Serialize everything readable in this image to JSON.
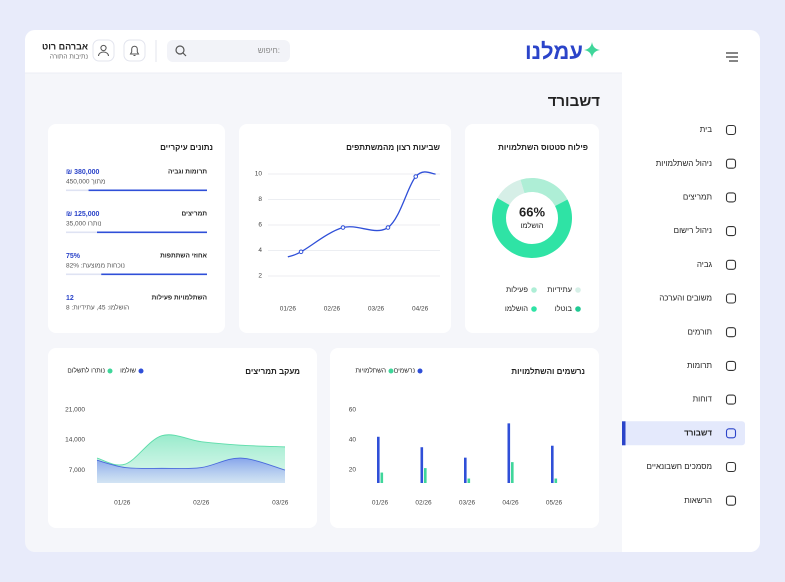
{
  "header": {
    "logo": "עמלנו",
    "search_placeholder": "חיפוש:",
    "user_name": "אברהם רוט",
    "user_org": "נתיבות התורה"
  },
  "sidebar": {
    "items": [
      "בית",
      "ניהול השתלמויות",
      "תמריצים",
      "ניהול רישום",
      "גביה",
      "משובים והערכה",
      "תורמים",
      "תרומות",
      "דוחות",
      "דשבורד",
      "מסמכים חשבונאיים",
      "הרשאות"
    ],
    "active_index": 9
  },
  "page_title": "דשבורד",
  "key_data": {
    "title": "נתונים עיקריים",
    "items": [
      {
        "label": "תרומות וגביה",
        "value": 380000,
        "value_label": "₪ 380,000",
        "sub": "מתוך 450,000",
        "progress": 84
      },
      {
        "label": "תמריצים",
        "value": 125000,
        "value_label": "₪ 125,000",
        "sub": "נותרו 35,000",
        "progress": 78
      },
      {
        "label": "אחוזי השתתפות",
        "value": 75,
        "value_label": "75%",
        "sub": "נוכחות ממוצעת: 82%",
        "progress": 75
      },
      {
        "label": "השתלמויות פעילות",
        "value": 12,
        "sub": "הושלמו: 45, עתידיות: 8"
      }
    ]
  },
  "chart_data": [
    {
      "type": "line",
      "title": "שביעות רצון מהמשתתפים",
      "color": "#2f4fd8",
      "x": [
        1,
        1.3,
        2.25,
        3.27,
        3.9,
        4.35
      ],
      "values": [
        3.5,
        3.9,
        5.8,
        5.8,
        9.8,
        10
      ],
      "xlim": [
        0.55,
        4.45
      ],
      "ylim": [
        1,
        10
      ],
      "xticks": [
        {
          "value": 1,
          "label": "01/26"
        },
        {
          "value": 2,
          "label": "02/26"
        },
        {
          "value": 3,
          "label": "03/26"
        },
        {
          "value": 4,
          "label": "04/26"
        }
      ],
      "yticks": [
        2,
        4,
        6,
        8,
        10
      ],
      "grid": true
    },
    {
      "type": "pie",
      "title": "פילוח סטטוס השתלמויות",
      "categories": [
        "עתידיות",
        "פעילות",
        "בוטלו",
        "הושלמו"
      ],
      "values": [
        12,
        22,
        0,
        66
      ],
      "value_labels": [
        null,
        null,
        null,
        "66%"
      ],
      "colors": [
        "#d6efe7",
        "#aeeed6",
        "#20c993",
        "#2fe3a5"
      ]
    },
    {
      "type": "area",
      "title": "מעקב תמריצים",
      "x": [
        0.68,
        1.04,
        1.5,
        2,
        2.5,
        3.06
      ],
      "series": [
        {
          "name": "שולמו",
          "color": "#2f4fd8",
          "values": [
            9300,
            7600,
            7400,
            7600,
            9800,
            7000
          ]
        },
        {
          "name": "נותרו לתשלום",
          "color": "#3fd69a",
          "values": [
            9800,
            8400,
            15000,
            13600,
            12800,
            12400
          ]
        }
      ],
      "xlim": [
        0.68,
        3.06
      ],
      "ylim": [
        4000,
        24000
      ],
      "xticks": [
        {
          "value": 1,
          "label": "01/26"
        },
        {
          "value": 2,
          "label": "02/26"
        },
        {
          "value": 3,
          "label": "03/26"
        }
      ],
      "yticks": [
        {
          "value": 7000,
          "label": "7,000"
        },
        {
          "value": 14000,
          "label": "14,000"
        },
        {
          "value": 21000,
          "label": "21,000"
        }
      ]
    },
    {
      "type": "bar",
      "title": "נרשמים והשתלמויות",
      "categories": [
        "01/26",
        "02/26",
        "03/26",
        "04/26",
        "05/26"
      ],
      "series": [
        {
          "name": "נרשמים",
          "color": "#2f4fd8",
          "values": [
            42,
            35,
            28,
            51,
            36
          ]
        },
        {
          "name": "השתלמויות",
          "color": "#3fd69a",
          "values": [
            18,
            21,
            14,
            25,
            14
          ]
        }
      ],
      "ylim": [
        11,
        66
      ],
      "yticks": [
        20,
        40,
        60
      ]
    }
  ]
}
